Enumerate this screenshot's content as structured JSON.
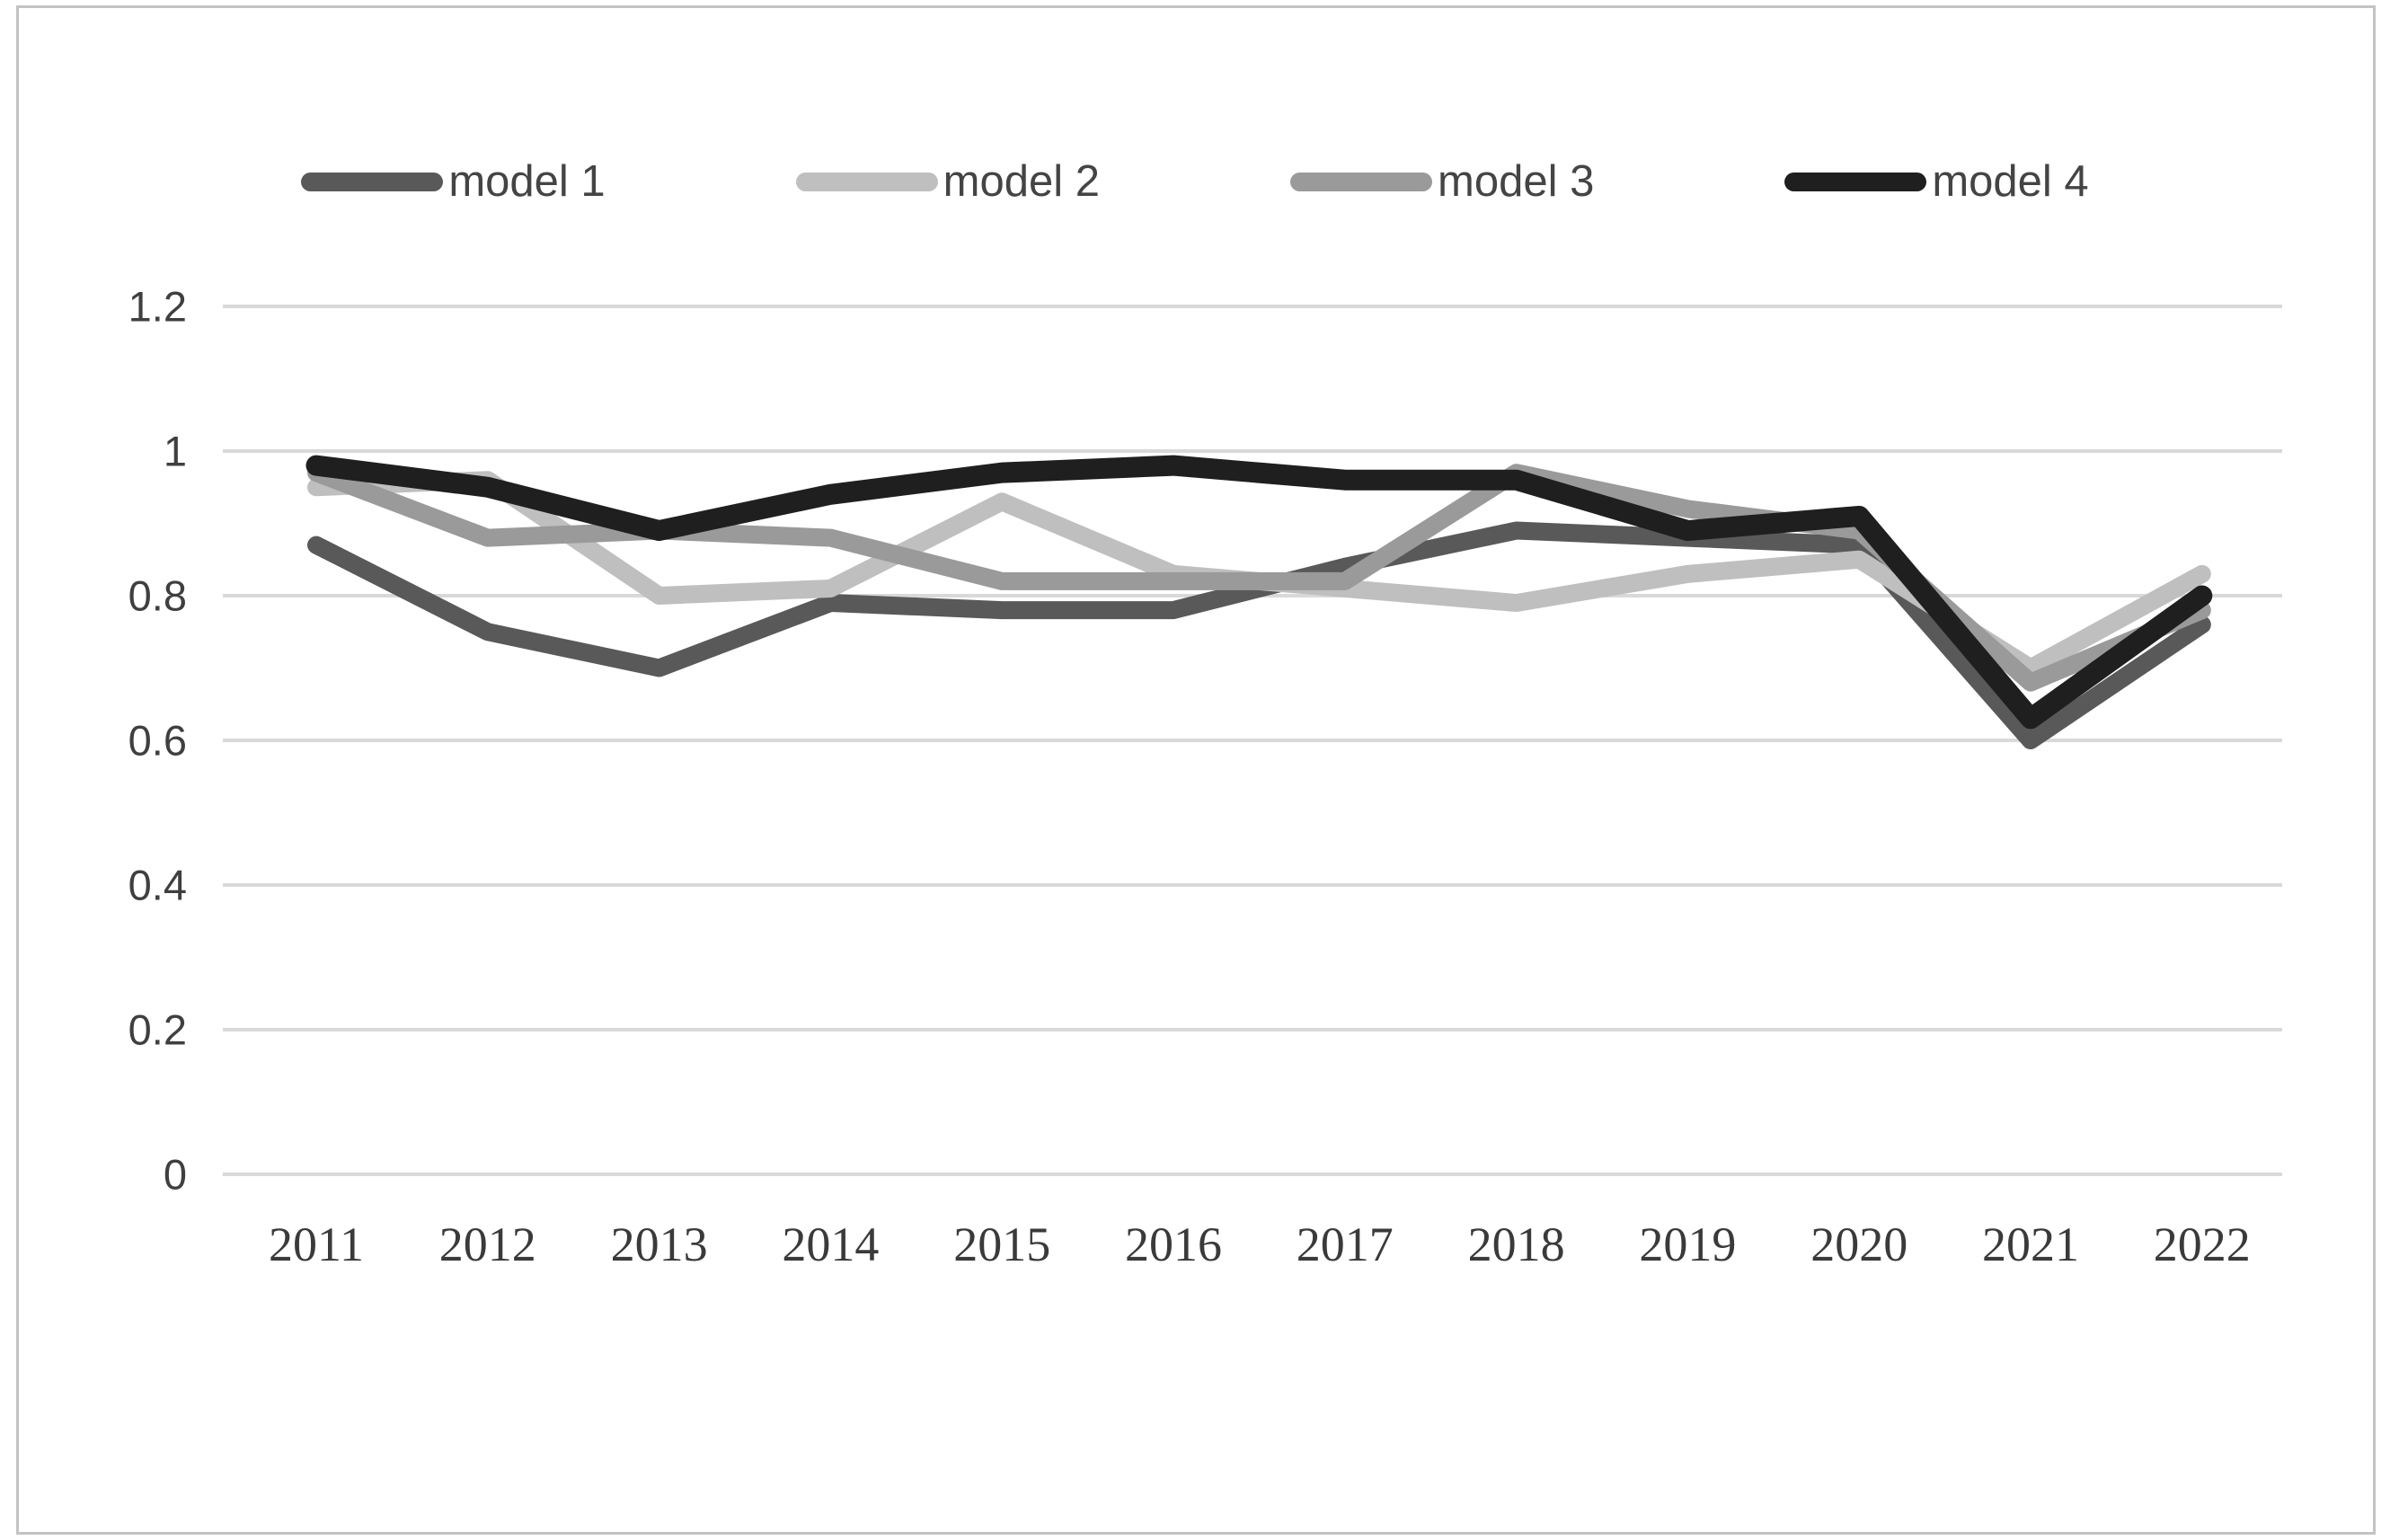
{
  "chart_data": {
    "type": "line",
    "title": "",
    "xlabel": "",
    "ylabel": "",
    "x": [
      2011,
      2012,
      2013,
      2014,
      2015,
      2016,
      2017,
      2018,
      2019,
      2020,
      2021,
      2022
    ],
    "x_tick_labels": [
      "2011",
      "2012",
      "2013",
      "2014",
      "2015",
      "2016",
      "2017",
      "2018",
      "2019",
      "2020",
      "2021",
      "2022"
    ],
    "series": [
      {
        "name": "model 1",
        "color": "#595959",
        "values": [
          0.87,
          0.75,
          0.7,
          0.79,
          0.78,
          0.78,
          0.84,
          0.89,
          0.88,
          0.87,
          0.6,
          0.76
        ]
      },
      {
        "name": "model 2",
        "color": "#bfbfbf",
        "values": [
          0.95,
          0.96,
          0.8,
          0.81,
          0.93,
          0.83,
          0.81,
          0.79,
          0.83,
          0.85,
          0.7,
          0.83
        ]
      },
      {
        "name": "model 3",
        "color": "#9a9a9a",
        "values": [
          0.97,
          0.88,
          0.89,
          0.88,
          0.82,
          0.82,
          0.82,
          0.97,
          0.92,
          0.89,
          0.68,
          0.78
        ]
      },
      {
        "name": "model 4",
        "color": "#1f1f1f",
        "values": [
          0.98,
          0.95,
          0.89,
          0.94,
          0.97,
          0.98,
          0.96,
          0.96,
          0.89,
          0.91,
          0.63,
          0.8
        ]
      }
    ],
    "ylim": [
      0,
      1.2
    ],
    "yticks": [
      0,
      0.2,
      0.4,
      0.6,
      0.8,
      1.0,
      1.2
    ],
    "y_tick_labels": [
      "0",
      "0.2",
      "0.4",
      "0.6",
      "0.8",
      "1",
      "1.2"
    ],
    "grid": true,
    "gridline_color": "#d9d9d9",
    "legend_position": "top"
  }
}
